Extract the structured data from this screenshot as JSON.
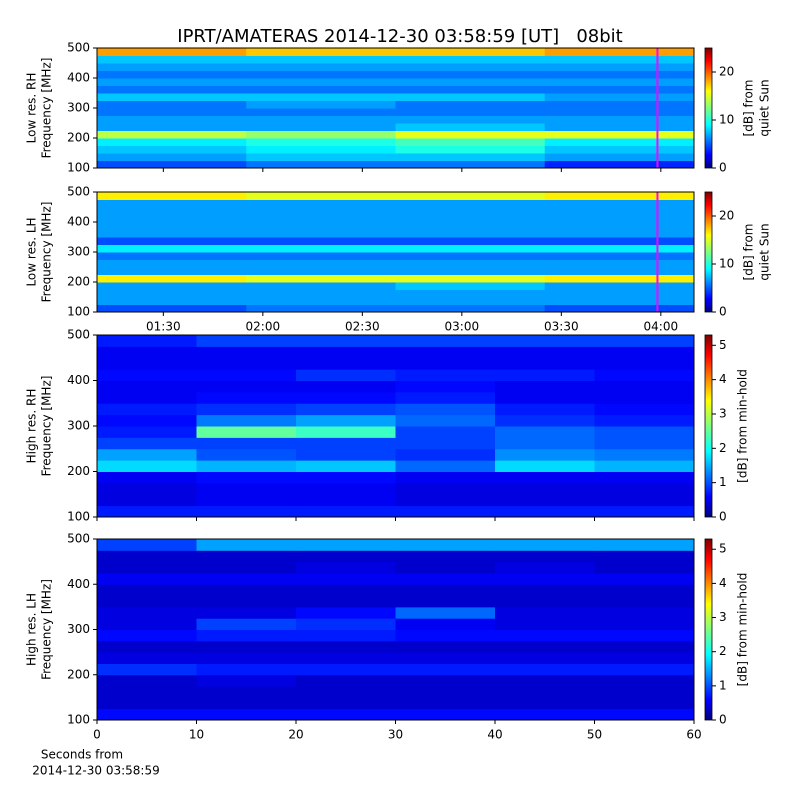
{
  "title": "IPRT/AMATERAS 2014-12-30 03:58:59 [UT]   08bit",
  "xlabel": [
    "Seconds from",
    "2014-12-30 03:58:59"
  ],
  "chart_data": [
    {
      "type": "heatmap",
      "ylabel": [
        "Low res. RH",
        "Frequency [MHz]"
      ],
      "clabel": [
        "[dB] from",
        "quiet Sun"
      ],
      "xlim": [
        70,
        250
      ],
      "ylim": [
        100,
        500
      ],
      "yticks": [
        100,
        200,
        300,
        400,
        500
      ],
      "clim": [
        0,
        25
      ],
      "cticks": [
        0,
        10,
        20
      ],
      "vline": {
        "value": 238.98,
        "color": "#ff00ff"
      },
      "x_bins": [
        70,
        115,
        160,
        205,
        250
      ],
      "y_bins": [
        100,
        125,
        150,
        175,
        200,
        225,
        250,
        275,
        300,
        325,
        350,
        375,
        400,
        425,
        450,
        475,
        500
      ],
      "z": [
        [
          5,
          6,
          6,
          4
        ],
        [
          7,
          8,
          8,
          7
        ],
        [
          8,
          9,
          10,
          8
        ],
        [
          9,
          10,
          11,
          9
        ],
        [
          14,
          13,
          15,
          15
        ],
        [
          7,
          7,
          8,
          7
        ],
        [
          7,
          7,
          7,
          7
        ],
        [
          6,
          6,
          6,
          6
        ],
        [
          6,
          7,
          6,
          6
        ],
        [
          8,
          8,
          8,
          7
        ],
        [
          6,
          6,
          6,
          6
        ],
        [
          7,
          7,
          7,
          7
        ],
        [
          6,
          6,
          6,
          6
        ],
        [
          7,
          7,
          7,
          7
        ],
        [
          8,
          8,
          8,
          8
        ],
        [
          18,
          17,
          17,
          18
        ]
      ]
    },
    {
      "type": "heatmap",
      "ylabel": [
        "Low res. LH",
        "Frequency [MHz]"
      ],
      "clabel": [
        "[dB] from",
        "quiet Sun"
      ],
      "xlim": [
        70,
        250
      ],
      "ylim": [
        100,
        500
      ],
      "yticks": [
        100,
        200,
        300,
        400,
        500
      ],
      "clim": [
        0,
        25
      ],
      "cticks": [
        0,
        10,
        20
      ],
      "xticks": [
        {
          "value": 90,
          "label": "01:30"
        },
        {
          "value": 120,
          "label": "02:00"
        },
        {
          "value": 150,
          "label": "02:30"
        },
        {
          "value": 180,
          "label": "03:00"
        },
        {
          "value": 210,
          "label": "03:30"
        },
        {
          "value": 240,
          "label": "04:00"
        }
      ],
      "vline": {
        "value": 238.98,
        "color": "#ff00ff"
      },
      "x_bins": [
        70,
        115,
        160,
        205,
        250
      ],
      "y_bins": [
        100,
        125,
        150,
        175,
        200,
        225,
        250,
        275,
        300,
        325,
        350,
        375,
        400,
        425,
        450,
        475,
        500
      ],
      "z": [
        [
          5,
          6,
          6,
          5
        ],
        [
          7,
          7,
          7,
          7
        ],
        [
          7,
          7,
          7,
          7
        ],
        [
          7,
          7,
          8,
          7
        ],
        [
          16,
          15,
          15,
          16
        ],
        [
          7,
          7,
          7,
          7
        ],
        [
          7,
          7,
          7,
          7
        ],
        [
          6,
          6,
          6,
          6
        ],
        [
          9,
          9,
          9,
          9
        ],
        [
          5,
          5,
          5,
          5
        ],
        [
          7,
          7,
          7,
          7
        ],
        [
          7,
          7,
          7,
          7
        ],
        [
          7,
          7,
          7,
          7
        ],
        [
          7,
          7,
          7,
          7
        ],
        [
          7,
          7,
          7,
          7
        ],
        [
          16,
          15,
          15,
          16
        ]
      ]
    },
    {
      "type": "heatmap",
      "ylabel": [
        "High res. RH",
        "Frequency [MHz]"
      ],
      "clabel": [
        "[dB] from min-hold"
      ],
      "xlim": [
        0,
        60
      ],
      "ylim": [
        100,
        500
      ],
      "yticks": [
        100,
        200,
        300,
        400,
        500
      ],
      "clim": [
        0,
        5.3
      ],
      "cticks": [
        0,
        1,
        2,
        3,
        4,
        5
      ],
      "x_bins": [
        0,
        10,
        20,
        30,
        40,
        50,
        60
      ],
      "y_bins": [
        100,
        125,
        150,
        175,
        200,
        225,
        250,
        275,
        300,
        325,
        350,
        375,
        400,
        425,
        450,
        475,
        500
      ],
      "z": [
        [
          0.8,
          0.8,
          0.8,
          0.8,
          0.8,
          0.8
        ],
        [
          0.5,
          0.6,
          0.6,
          0.5,
          0.5,
          0.5
        ],
        [
          0.5,
          0.6,
          0.6,
          0.5,
          0.5,
          0.5
        ],
        [
          0.6,
          0.7,
          0.7,
          0.6,
          0.6,
          0.6
        ],
        [
          1.8,
          1.6,
          1.7,
          1.2,
          1.8,
          1.6
        ],
        [
          1.5,
          1.1,
          1.0,
          0.9,
          1.4,
          1.3
        ],
        [
          1.0,
          1.0,
          1.0,
          1.0,
          1.2,
          1.1
        ],
        [
          0.8,
          2.5,
          2.3,
          1.0,
          1.2,
          1.1
        ],
        [
          0.7,
          1.3,
          1.5,
          1.2,
          0.9,
          0.8
        ],
        [
          0.8,
          0.9,
          1.0,
          1.1,
          0.8,
          0.7
        ],
        [
          0.6,
          0.7,
          0.7,
          0.8,
          0.6,
          0.6
        ],
        [
          0.6,
          0.6,
          0.6,
          0.7,
          0.6,
          0.6
        ],
        [
          0.7,
          0.7,
          0.9,
          0.8,
          0.8,
          0.7
        ],
        [
          0.6,
          0.6,
          0.6,
          0.6,
          0.6,
          0.6
        ],
        [
          0.6,
          0.6,
          0.6,
          0.6,
          0.6,
          0.6
        ],
        [
          0.8,
          1.0,
          1.0,
          1.0,
          1.0,
          1.0
        ]
      ]
    },
    {
      "type": "heatmap",
      "ylabel": [
        "High res. LH",
        "Frequency [MHz]"
      ],
      "clabel": [
        "[dB] from min-hold"
      ],
      "xlim": [
        0,
        60
      ],
      "ylim": [
        100,
        500
      ],
      "yticks": [
        100,
        200,
        300,
        400,
        500
      ],
      "clim": [
        0,
        5.3
      ],
      "cticks": [
        0,
        1,
        2,
        3,
        4,
        5
      ],
      "xticks": [
        0,
        10,
        20,
        30,
        40,
        50,
        60
      ],
      "x_bins": [
        0,
        10,
        20,
        30,
        40,
        50,
        60
      ],
      "y_bins": [
        100,
        125,
        150,
        175,
        200,
        225,
        250,
        275,
        300,
        325,
        350,
        375,
        400,
        425,
        450,
        475,
        500
      ],
      "z": [
        [
          0.7,
          0.7,
          0.7,
          0.7,
          0.7,
          0.7
        ],
        [
          0.4,
          0.4,
          0.4,
          0.4,
          0.4,
          0.4
        ],
        [
          0.4,
          0.4,
          0.4,
          0.4,
          0.4,
          0.4
        ],
        [
          0.4,
          0.5,
          0.4,
          0.4,
          0.4,
          0.4
        ],
        [
          0.9,
          0.8,
          0.8,
          0.8,
          0.8,
          0.8
        ],
        [
          0.5,
          0.5,
          0.5,
          0.5,
          0.5,
          0.5
        ],
        [
          0.4,
          0.4,
          0.4,
          0.4,
          0.4,
          0.4
        ],
        [
          0.7,
          0.8,
          0.8,
          0.7,
          0.7,
          0.7
        ],
        [
          0.5,
          1.0,
          0.9,
          0.6,
          0.5,
          0.5
        ],
        [
          0.5,
          0.5,
          0.7,
          1.2,
          0.5,
          0.5
        ],
        [
          0.4,
          0.4,
          0.4,
          0.4,
          0.4,
          0.4
        ],
        [
          0.4,
          0.4,
          0.4,
          0.4,
          0.4,
          0.4
        ],
        [
          0.6,
          0.6,
          0.6,
          0.6,
          0.6,
          0.6
        ],
        [
          0.4,
          0.4,
          0.5,
          0.4,
          0.5,
          0.4
        ],
        [
          0.4,
          0.4,
          0.4,
          0.4,
          0.4,
          0.4
        ],
        [
          1.0,
          1.5,
          1.5,
          1.5,
          1.5,
          1.5
        ]
      ]
    }
  ]
}
